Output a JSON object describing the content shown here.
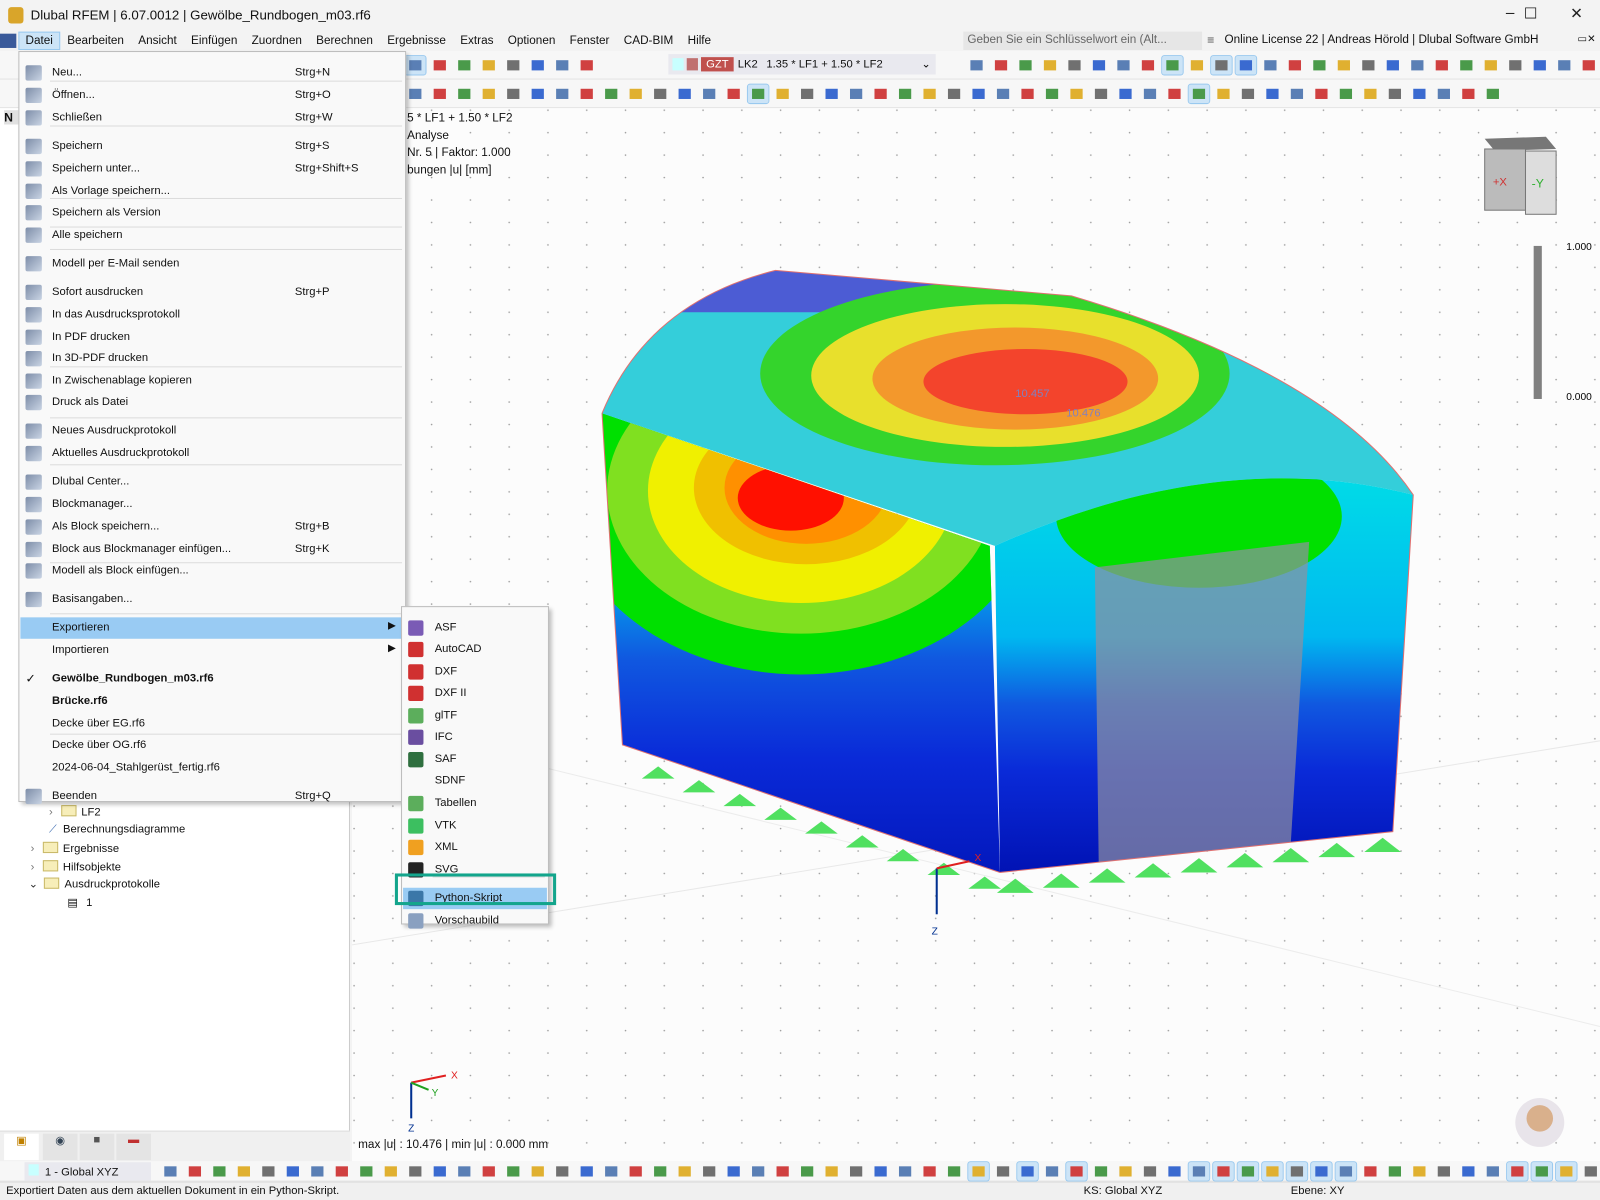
{
  "window": {
    "title": "Dlubal RFEM | 6.07.0012 | Gewölbe_Rundbogen_m03.rf6",
    "minimize": "–",
    "maximize": "☐",
    "close": "✕"
  },
  "menubar": {
    "items": [
      "Datei",
      "Bearbeiten",
      "Ansicht",
      "Einfügen",
      "Zuordnen",
      "Berechnen",
      "Ergebnisse",
      "Extras",
      "Optionen",
      "Fenster",
      "CAD-BIM",
      "Hilfe"
    ],
    "search_placeholder": "Geben Sie ein Schlüsselwort ein (Alt...",
    "license": "Online License 22 | Andreas Hörold | Dlubal Software GmbH"
  },
  "loadcase": {
    "type": "GZT",
    "id": "LK2",
    "combo": "1.35 * LF1 + 1.50 * LF2",
    "colors": {
      "gzt": "#c0504d",
      "swatch1": "#c8ffff",
      "swatch2": "#c07070"
    }
  },
  "datei_menu": {
    "items": [
      {
        "label": "Neu...",
        "shortcut": "Strg+N",
        "icon": "new-file-icon"
      },
      {
        "label": "Öffnen...",
        "shortcut": "Strg+O",
        "icon": "open-folder-icon"
      },
      {
        "label": "Schließen",
        "shortcut": "Strg+W",
        "icon": "close-folder-icon"
      },
      {
        "label": "Speichern",
        "shortcut": "Strg+S",
        "icon": "save-icon"
      },
      {
        "label": "Speichern unter...",
        "shortcut": "Strg+Shift+S",
        "icon": "save-as-icon"
      },
      {
        "label": "Als Vorlage speichern...",
        "shortcut": "",
        "icon": "save-template-icon"
      },
      {
        "label": "Speichern als Version",
        "shortcut": "",
        "icon": "save-version-icon"
      },
      {
        "label": "Alle speichern",
        "shortcut": "",
        "icon": "save-all-icon"
      },
      {
        "label": "Modell per E-Mail senden",
        "shortcut": "",
        "icon": "email-icon"
      },
      {
        "label": "Sofort ausdrucken",
        "shortcut": "Strg+P",
        "icon": "print-icon"
      },
      {
        "label": "In das Ausdrucksprotokoll",
        "shortcut": "",
        "icon": "printout-report-icon"
      },
      {
        "label": "In PDF drucken",
        "shortcut": "",
        "icon": "pdf-icon"
      },
      {
        "label": "In 3D-PDF drucken",
        "shortcut": "",
        "icon": "pdf-3d-icon"
      },
      {
        "label": "In Zwischenablage kopieren",
        "shortcut": "",
        "icon": "clipboard-icon"
      },
      {
        "label": "Druck als Datei",
        "shortcut": "",
        "icon": "print-file-icon"
      },
      {
        "label": "Neues Ausdruckprotokoll",
        "shortcut": "",
        "icon": "new-report-icon"
      },
      {
        "label": "Aktuelles Ausdruckprotokoll",
        "shortcut": "",
        "icon": "current-report-icon"
      },
      {
        "label": "Dlubal Center...",
        "shortcut": "",
        "icon": "dlubal-center-icon"
      },
      {
        "label": "Blockmanager...",
        "shortcut": "",
        "icon": "block-manager-icon"
      },
      {
        "label": "Als Block speichern...",
        "shortcut": "Strg+B",
        "icon": "save-block-icon"
      },
      {
        "label": "Block aus Blockmanager einfügen...",
        "shortcut": "Strg+K",
        "icon": "insert-block-icon"
      },
      {
        "label": "Modell als Block einfügen...",
        "shortcut": "",
        "icon": "model-block-icon"
      },
      {
        "label": "Basisangaben...",
        "shortcut": "",
        "icon": "base-data-icon"
      },
      {
        "label": "Exportieren",
        "shortcut": "",
        "icon": ""
      },
      {
        "label": "Importieren",
        "shortcut": "",
        "icon": ""
      },
      {
        "label": "Gewölbe_Rundbogen_m03.rf6",
        "shortcut": "",
        "icon": "checkmark-icon"
      },
      {
        "label": "Brücke.rf6",
        "shortcut": "",
        "icon": ""
      },
      {
        "label": "Decke über EG.rf6",
        "shortcut": "",
        "icon": ""
      },
      {
        "label": "Decke über OG.rf6",
        "shortcut": "",
        "icon": ""
      },
      {
        "label": "2024-06-04_Stahlgerüst_fertig.rf6",
        "shortcut": "",
        "icon": ""
      },
      {
        "label": "Beenden",
        "shortcut": "Strg+Q",
        "icon": "exit-icon"
      }
    ]
  },
  "export_submenu": {
    "items": [
      {
        "label": "ASF",
        "badge": "ASF",
        "color": "#7a5bb5"
      },
      {
        "label": "AutoCAD",
        "badge": "A",
        "color": "#d03030"
      },
      {
        "label": "DXF",
        "badge": "DXF",
        "color": "#d03030"
      },
      {
        "label": "DXF II",
        "badge": "DXF",
        "color": "#d03030"
      },
      {
        "label": "glTF",
        "badge": "gl",
        "color": "#5cae5c"
      },
      {
        "label": "IFC",
        "badge": "IFC",
        "color": "#6a4ea0"
      },
      {
        "label": "SAF",
        "badge": "SAF",
        "color": "#2f6f3f"
      },
      {
        "label": "SDNF",
        "badge": "",
        "color": "#f9f9f9"
      },
      {
        "label": "Tabellen",
        "badge": "X",
        "color": "#5cae5c"
      },
      {
        "label": "VTK",
        "badge": "VTK",
        "color": "#3cbf60"
      },
      {
        "label": "XML",
        "badge": "XML",
        "color": "#f0a020"
      },
      {
        "label": "SVG",
        "badge": "SVG",
        "color": "#222222"
      },
      {
        "label": "Python-Skript",
        "badge": "py",
        "color": "#3b77a8"
      },
      {
        "label": "Vorschaubild",
        "badge": "",
        "color": "#8aa0c0"
      }
    ]
  },
  "navigator": {
    "header": "N",
    "tree": [
      "LF2",
      "Berechnungsdiagramme",
      "Ergebnisse",
      "Hilfsobjekte",
      "Ausdruckprotokolle",
      "1"
    ]
  },
  "viewport": {
    "info_lines": [
      "5 * LF1 + 1.50 * LF2",
      "Analyse",
      "Nr. 5 | Faktor: 1.000",
      "bungen |u| [mm]"
    ],
    "summary": "max |u| : 10.476 | min |u| : 0.000 mm",
    "legend": {
      "max": "1.000",
      "min": "0.000"
    },
    "value_labels": [
      "10.457",
      "10.476"
    ],
    "cube_labels": [
      "+X",
      "-Y"
    ],
    "axes": [
      "X",
      "Y",
      "Z"
    ]
  },
  "bottom_toolbar": {
    "coordinate_system": "1 - Global XYZ"
  },
  "statusbar": {
    "message": "Exportiert Daten aus dem aktuellen Dokument in ein Python-Skript.",
    "ks": "KS: Global XYZ",
    "plane": "Ebene: XY"
  },
  "highlight_color": "#13a58c"
}
